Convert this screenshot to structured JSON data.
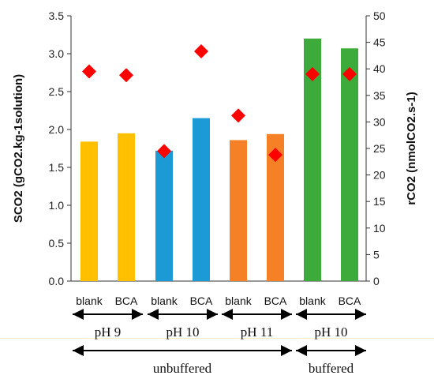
{
  "chart_data": {
    "type": "bar",
    "categories": [
      "blank",
      "BCA",
      "blank",
      "BCA",
      "blank",
      "BCA",
      "blank",
      "BCA"
    ],
    "groups": [
      {
        "label": "pH 9",
        "members": [
          0,
          1
        ]
      },
      {
        "label": "pH 10",
        "members": [
          2,
          3
        ]
      },
      {
        "label": "pH 11",
        "members": [
          4,
          5
        ]
      },
      {
        "label": "pH 10",
        "members": [
          6,
          7
        ]
      }
    ],
    "supergroups": [
      {
        "label": "unbuffered",
        "members": [
          0,
          5
        ]
      },
      {
        "label": "buffered",
        "members": [
          6,
          7
        ]
      }
    ],
    "series": [
      {
        "values": [
          1.84,
          1.95,
          1.72,
          2.15,
          1.86,
          1.94,
          3.2,
          3.07
        ],
        "colors": [
          "#FFC000",
          "#FFC000",
          "#1B9AD6",
          "#1B9AD6",
          "#F58025",
          "#F58025",
          "#3DAA3C",
          "#3DAA3C"
        ],
        "axis": "left"
      },
      {
        "values": [
          39.5,
          38.8,
          24.5,
          43.3,
          31.2,
          23.8,
          39.0,
          39.0
        ],
        "color": "#FF0000",
        "marker": "diamond",
        "axis": "right"
      }
    ],
    "ylim": [
      0,
      3.5
    ],
    "yticks": [
      "0.0",
      "0.5",
      "1.0",
      "1.5",
      "2.0",
      "2.5",
      "3.0",
      "3.5"
    ],
    "y2lim": [
      0,
      50
    ],
    "y2ticks": [
      "0",
      "5",
      "10",
      "15",
      "20",
      "25",
      "30",
      "35",
      "40",
      "45",
      "50"
    ],
    "ylabel": "SCO2 (gCO2.kg-1solution)",
    "y2label": "rCO2 (nmolCO2.s-1)",
    "grid": false
  }
}
